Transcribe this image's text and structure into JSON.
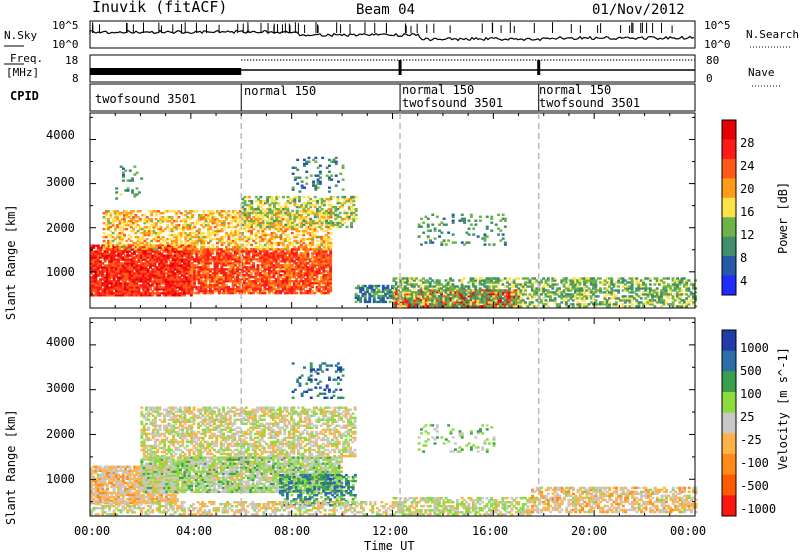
{
  "header": {
    "station": "Inuvik (fitACF)",
    "beam": "Beam 04",
    "date": "01/Nov/2012"
  },
  "summary_panels": {
    "nsky_label": "N.Sky",
    "nsky_ticks": [
      "10^5",
      "10^0"
    ],
    "nsearch_label": "N.Search",
    "nsearch_ticks": [
      "10^5",
      "10^0"
    ],
    "freq_label": "Freq.",
    "freq_unit": "[MHz]",
    "freq_ticks": [
      "18",
      "8"
    ],
    "nave_label": "Nave",
    "nave_ticks": [
      "80",
      "0"
    ],
    "cpid_label": "CPID"
  },
  "cpid_segments": [
    {
      "start_h": 0,
      "lines": [
        "twofsound 3501"
      ]
    },
    {
      "start_h": 6,
      "lines": [
        "normal 150"
      ]
    },
    {
      "start_h": 12.3,
      "lines": [
        "normal 150",
        "twofsound 3501"
      ]
    },
    {
      "start_h": 17.8,
      "lines": [
        "normal 150",
        "twofsound 3501"
      ]
    }
  ],
  "colors": {
    "power_scale": [
      "#1f2bff",
      "#2659a8",
      "#3f8f6a",
      "#6db34a",
      "#ffe24a",
      "#ff9d1a",
      "#ff5a1a",
      "#ff1a1a",
      "#e60000"
    ],
    "velocity_scale": [
      "#ff1414",
      "#ff5a00",
      "#ff8c1a",
      "#ffb347",
      "#c8c8c8",
      "#8bdc3c",
      "#3aa050",
      "#2c6ea8",
      "#1f3ca8"
    ],
    "divider": "#bbbbbb"
  },
  "chart_data": [
    {
      "type": "heatmap",
      "panel": "power",
      "ylabel": "Slant Range [km]",
      "xlabel": "",
      "xlim": [
        0,
        24
      ],
      "ylim": [
        180,
        4600
      ],
      "x_ticks": [
        "00:00",
        "04:00",
        "08:00",
        "12:00",
        "16:00",
        "20:00",
        "00:00"
      ],
      "y_ticks": [
        "1000",
        "2000",
        "3000",
        "4000"
      ],
      "colorbar": {
        "label": "Power [dB]",
        "ticks": [
          "28",
          "24",
          "20",
          "16",
          "12",
          "8",
          "4"
        ],
        "range": [
          0,
          32
        ]
      },
      "regions": [
        {
          "t0": 0,
          "t1": 4,
          "r0": 450,
          "r1": 1600,
          "value": 26,
          "density": 0.92
        },
        {
          "t0": 4,
          "t1": 9.5,
          "r0": 500,
          "r1": 1500,
          "value": 24,
          "density": 0.85
        },
        {
          "t0": 0.5,
          "t1": 9.5,
          "r0": 1500,
          "r1": 2400,
          "value": 18,
          "density": 0.55
        },
        {
          "t0": 6,
          "t1": 10.5,
          "r0": 2000,
          "r1": 2700,
          "value": 14,
          "density": 0.45
        },
        {
          "t0": 10.5,
          "t1": 12,
          "r0": 300,
          "r1": 700,
          "value": 8,
          "density": 0.7
        },
        {
          "t0": 12,
          "t1": 17,
          "r0": 200,
          "r1": 600,
          "value": 26,
          "density": 0.85
        },
        {
          "t0": 12,
          "t1": 24,
          "r0": 200,
          "r1": 850,
          "value": 12,
          "density": 0.55
        },
        {
          "t0": 8,
          "t1": 10,
          "r0": 2800,
          "r1": 3600,
          "value": 8,
          "density": 0.18
        },
        {
          "t0": 13,
          "t1": 16.5,
          "r0": 1600,
          "r1": 2300,
          "value": 10,
          "density": 0.18
        },
        {
          "t0": 1,
          "t1": 2,
          "r0": 2600,
          "r1": 3400,
          "value": 10,
          "density": 0.12
        }
      ]
    },
    {
      "type": "heatmap",
      "panel": "velocity",
      "ylabel": "Slant Range [km]",
      "xlabel": "Time UT",
      "xlim": [
        0,
        24
      ],
      "ylim": [
        180,
        4600
      ],
      "x_ticks": [
        "00:00",
        "04:00",
        "08:00",
        "12:00",
        "16:00",
        "20:00",
        "00:00"
      ],
      "y_ticks": [
        "1000",
        "2000",
        "3000",
        "4000"
      ],
      "colorbar": {
        "label": "Velocity [m s^-1]",
        "ticks": [
          "1000",
          "500",
          "100",
          "25",
          "-25",
          "-100",
          "-500",
          "-1000"
        ],
        "range": [
          -1200,
          1200
        ]
      },
      "regions": [
        {
          "t0": 0,
          "t1": 3.5,
          "r0": 450,
          "r1": 1300,
          "value": -200,
          "density": 0.85
        },
        {
          "t0": 2,
          "t1": 10,
          "r0": 700,
          "r1": 1500,
          "value": 150,
          "density": 0.85
        },
        {
          "t0": 2,
          "t1": 10.5,
          "r0": 1500,
          "r1": 2600,
          "value": 0,
          "density": 0.6
        },
        {
          "t0": 7.5,
          "t1": 10.5,
          "r0": 400,
          "r1": 1100,
          "value": 600,
          "density": 0.5
        },
        {
          "t0": 12,
          "t1": 17.5,
          "r0": 200,
          "r1": 600,
          "value": 50,
          "density": 0.6
        },
        {
          "t0": 17.5,
          "t1": 24,
          "r0": 250,
          "r1": 800,
          "value": -150,
          "density": 0.6
        },
        {
          "t0": 8,
          "t1": 10,
          "r0": 2800,
          "r1": 3600,
          "value": 800,
          "density": 0.18
        },
        {
          "t0": 13,
          "t1": 16,
          "r0": 1600,
          "r1": 2200,
          "value": 200,
          "density": 0.18
        },
        {
          "t0": 0,
          "t1": 12,
          "r0": 200,
          "r1": 500,
          "value": -60,
          "density": 0.5
        }
      ]
    }
  ]
}
